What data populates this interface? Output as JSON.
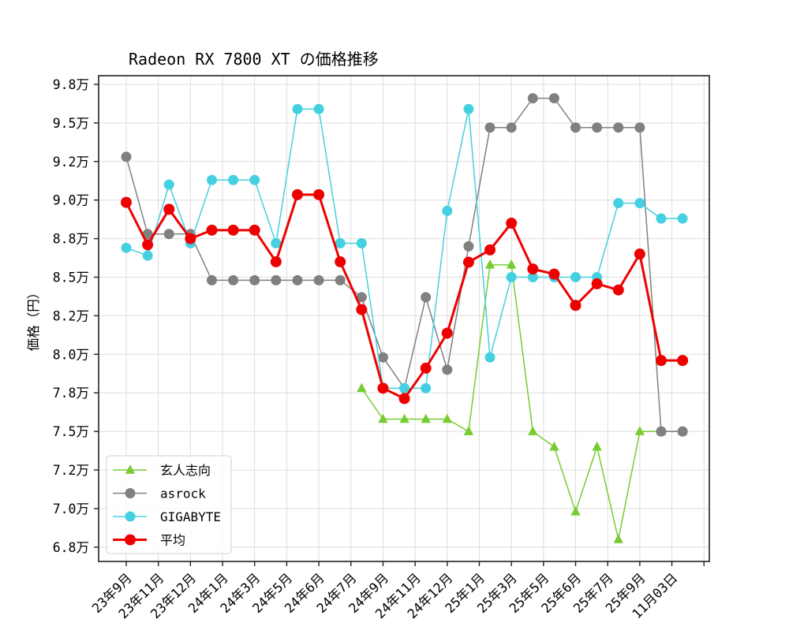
{
  "chart_data": {
    "type": "line",
    "title": "Radeon RX 7800 XT の価格推移",
    "xlabel": "",
    "ylabel": "価格（円）",
    "ylim": [
      66800,
      98800
    ],
    "grid": true,
    "legend_position": "lower left",
    "y_ticks": [
      {
        "value": 97500,
        "label": "9.8万"
      },
      {
        "value": 95000,
        "label": "9.5万"
      },
      {
        "value": 92500,
        "label": "9.2万"
      },
      {
        "value": 90000,
        "label": "9.0万"
      },
      {
        "value": 87500,
        "label": "8.8万"
      },
      {
        "value": 85000,
        "label": "8.5万"
      },
      {
        "value": 82500,
        "label": "8.2万"
      },
      {
        "value": 80000,
        "label": "8.0万"
      },
      {
        "value": 77500,
        "label": "7.8万"
      },
      {
        "value": 75000,
        "label": "7.5万"
      },
      {
        "value": 72500,
        "label": "7.2万"
      },
      {
        "value": 70000,
        "label": "7.0万"
      },
      {
        "value": 67500,
        "label": "6.8万"
      }
    ],
    "x_ticks": [
      {
        "index": 0,
        "label": "23年9月"
      },
      {
        "index": 1.5,
        "label": "23年11月"
      },
      {
        "index": 3,
        "label": "23年12月"
      },
      {
        "index": 4.5,
        "label": "24年1月"
      },
      {
        "index": 6,
        "label": "24年3月"
      },
      {
        "index": 7.5,
        "label": "24年5月"
      },
      {
        "index": 9,
        "label": "24年6月"
      },
      {
        "index": 10.5,
        "label": "24年7月"
      },
      {
        "index": 12,
        "label": "24年9月"
      },
      {
        "index": 13.5,
        "label": "24年11月"
      },
      {
        "index": 15,
        "label": "24年12月"
      },
      {
        "index": 16.5,
        "label": "25年1月"
      },
      {
        "index": 18,
        "label": "25年3月"
      },
      {
        "index": 19.5,
        "label": "25年5月"
      },
      {
        "index": 21,
        "label": "25年6月"
      },
      {
        "index": 22.5,
        "label": "25年7月"
      },
      {
        "index": 24,
        "label": "25年9月"
      },
      {
        "index": 25.5,
        "label": "11月03日"
      },
      {
        "index": 27,
        "label": ""
      }
    ],
    "x": [
      0,
      1,
      2,
      3,
      4,
      5,
      6,
      7,
      8,
      9,
      10,
      11,
      12,
      13,
      14,
      15,
      16,
      17,
      18,
      19,
      20,
      21,
      22,
      23,
      24,
      25,
      26
    ],
    "series": [
      {
        "name": "玄人志向",
        "color": "#77cc33",
        "marker": "triangle",
        "linewidth": 1.5,
        "values": [
          null,
          null,
          null,
          null,
          null,
          null,
          null,
          null,
          null,
          null,
          null,
          77800,
          75800,
          75800,
          75800,
          75800,
          75000,
          85800,
          85800,
          75000,
          74000,
          69800,
          74000,
          68000,
          75000,
          75000,
          75000
        ]
      },
      {
        "name": "asrock",
        "color": "#808080",
        "marker": "circle",
        "linewidth": 1.5,
        "values": [
          92800,
          87800,
          87800,
          87800,
          84800,
          84800,
          84800,
          84800,
          84800,
          84800,
          84800,
          83700,
          79800,
          77800,
          83700,
          79000,
          87000,
          94700,
          94700,
          96600,
          96600,
          94700,
          94700,
          94700,
          94700,
          75000,
          75000
        ]
      },
      {
        "name": "GIGABYTE",
        "color": "#44d0e0",
        "marker": "circle",
        "linewidth": 1.5,
        "values": [
          86900,
          86400,
          91000,
          87200,
          91300,
          91300,
          91300,
          87200,
          95900,
          95900,
          87200,
          87200,
          77800,
          77800,
          77800,
          89300,
          95900,
          79800,
          85000,
          85000,
          85000,
          85000,
          85000,
          89800,
          89800,
          88800,
          88800
        ]
      },
      {
        "name": "平均",
        "color": "#ee0000",
        "marker": "circle",
        "linewidth": 3,
        "values": [
          89850,
          87100,
          89400,
          87500,
          88050,
          88050,
          88050,
          86000,
          90350,
          90350,
          86000,
          82900,
          77800,
          77130,
          79100,
          81370,
          85970,
          86770,
          88500,
          85530,
          85200,
          83170,
          84570,
          84170,
          86500,
          79600,
          79600
        ]
      }
    ]
  }
}
